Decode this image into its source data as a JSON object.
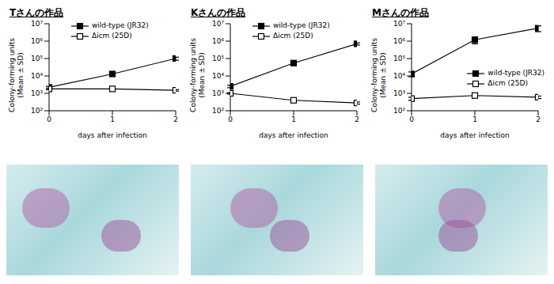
{
  "chart_data": [
    {
      "type": "line",
      "title": "Tさんの作品",
      "xlabel": "days after infection",
      "ylabel": [
        "Colony-forming units",
        "(Mean ± SD)"
      ],
      "x": [
        0,
        1,
        2
      ],
      "xlim": [
        0,
        2
      ],
      "xticks": [
        0,
        1,
        2
      ],
      "log": "y",
      "ylim": [
        100,
        10000000
      ],
      "yticks": [
        {
          "value": 100,
          "label": "10²"
        },
        {
          "value": 1000,
          "label": "10³"
        },
        {
          "value": 10000,
          "label": "10⁴"
        },
        {
          "value": 100000,
          "label": "10⁵"
        },
        {
          "value": 1000000,
          "label": "10⁶"
        },
        {
          "value": 10000000,
          "label": "10⁷"
        }
      ],
      "grid": false,
      "legend": "upper left",
      "series": [
        {
          "name": "wild-type (JR32)",
          "color": "#000000",
          "marker": "square",
          "line_style": "solid",
          "values": [
            2200,
            13000,
            100000
          ],
          "sd": [
            300,
            2000,
            20000
          ]
        },
        {
          "name": "Δicm (25D)",
          "color": "#000000",
          "marker": "open-square",
          "line_style": "solid",
          "values": [
            1800,
            1800,
            1500
          ],
          "sd": [
            200,
            200,
            150
          ]
        }
      ]
    },
    {
      "type": "line",
      "title": "Kさんの作品",
      "xlabel": "days after infection",
      "ylabel": [
        "Colony-forming units",
        "(Mean ± SD)"
      ],
      "x": [
        0,
        1,
        2
      ],
      "xlim": [
        0,
        2
      ],
      "xticks": [
        0,
        1,
        2
      ],
      "log": "y",
      "ylim": [
        100,
        10000000
      ],
      "yticks": [
        {
          "value": 100,
          "label": "10²"
        },
        {
          "value": 1000,
          "label": "10³"
        },
        {
          "value": 10000,
          "label": "10⁴"
        },
        {
          "value": 100000,
          "label": "10⁵"
        },
        {
          "value": 1000000,
          "label": "10⁶"
        },
        {
          "value": 10000000,
          "label": "10⁷"
        }
      ],
      "grid": false,
      "legend": "upper left",
      "series": [
        {
          "name": "wild-type (JR32)",
          "color": "#000000",
          "marker": "square",
          "line_style": "solid",
          "values": [
            2500,
            55000,
            700000
          ],
          "sd": [
            400,
            15000,
            100000
          ]
        },
        {
          "name": "Δicm (25D)",
          "color": "#000000",
          "marker": "open-square",
          "line_style": "solid",
          "values": [
            1000,
            400,
            280
          ],
          "sd": [
            100,
            50,
            40
          ]
        }
      ]
    },
    {
      "type": "line",
      "title": "Mさんの作品",
      "xlabel": "days after infection",
      "ylabel": [
        "Colony-forming units",
        "(Mean ± SD)"
      ],
      "x": [
        0,
        1,
        2
      ],
      "xlim": [
        0,
        2
      ],
      "xticks": [
        0,
        1,
        2
      ],
      "log": "y",
      "ylim": [
        100,
        10000000
      ],
      "yticks": [
        {
          "value": 100,
          "label": "10²"
        },
        {
          "value": 1000,
          "label": "10³"
        },
        {
          "value": 10000,
          "label": "10⁴"
        },
        {
          "value": 100000,
          "label": "10⁵"
        },
        {
          "value": 1000000,
          "label": "10⁶"
        },
        {
          "value": 10000000,
          "label": "10⁷"
        }
      ],
      "grid": false,
      "legend": "right",
      "series": [
        {
          "name": "wild-type (JR32)",
          "color": "#000000",
          "marker": "square",
          "line_style": "solid",
          "values": [
            13000,
            1200000,
            5500000
          ],
          "sd": [
            4000,
            500000,
            2000000
          ]
        },
        {
          "name": "Δicm (25D)",
          "color": "#000000",
          "marker": "open-square",
          "line_style": "solid",
          "values": [
            500,
            750,
            600
          ],
          "sd": [
            100,
            150,
            100
          ]
        }
      ]
    }
  ]
}
